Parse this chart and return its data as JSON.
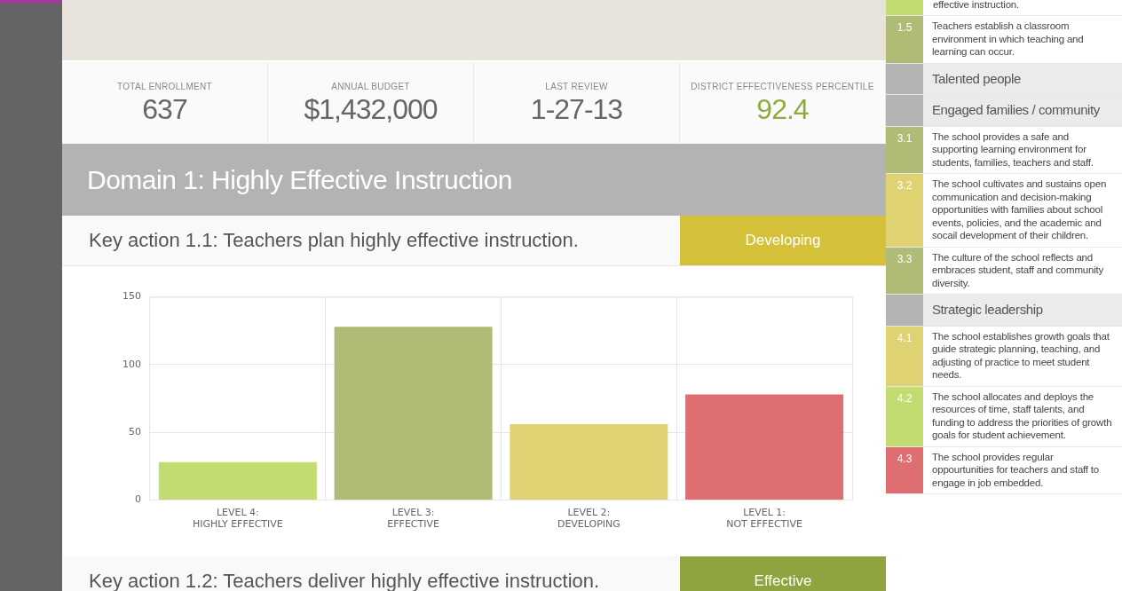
{
  "chart_data": [
    {
      "type": "other",
      "categories": [
        "TOTAL ENROLLMENT",
        "ANNUAL BUDGET",
        "LAST REVIEW",
        "DISTRICT EFFECTIVENESS PERCENTILE"
      ],
      "annotations": [
        "637",
        "$1,432,000",
        "1-27-13",
        "92.4"
      ]
    },
    {
      "type": "bar",
      "title": "Domain 1: Highly Effective Instruction",
      "subtitle": "Key action 1.1: Teachers plan highly effective instruction.",
      "annotations": [
        "Developing"
      ],
      "categories": [
        "LEVEL 4: HIGHLY EFFECTIVE",
        "LEVEL 3: EFFECTIVE",
        "LEVEL 2: DEVELOPING",
        "LEVEL 1: NOT EFFECTIVE"
      ],
      "values": [
        28,
        128,
        56,
        78
      ],
      "colors": [
        "#c2dc72",
        "#b0bc76",
        "#dfd272",
        "#de6e70"
      ],
      "ylim": [
        0,
        150
      ],
      "yticks": [
        0,
        50,
        100,
        150
      ],
      "grid": true
    },
    {
      "type": "other",
      "title": "Key action 1.2: Teachers deliver highly effective instruction.",
      "annotations": [
        "Effective"
      ]
    },
    {
      "type": "other",
      "categories": [
        null,
        "1.5",
        null,
        null,
        "3.1",
        "3.2",
        "3.3",
        null,
        "4.1",
        "4.2",
        "4.3"
      ],
      "annotations": [
        "effective instruction.",
        "Teachers establish a classroom environment in which teaching and learning can occur.",
        "Talented people",
        "Engaged families / community",
        "The school provides a safe and supporting learning environment for students, families, teachers and staff.",
        "The school cultivates and sustains open communication and decision-making opportunities with families about school events, policies, and the academic and socail development of their children.",
        "The culture of the school reflects and embraces student, staff and community diversity.",
        "Strategic leadership",
        "The school establishes growth goals that guide strategic planning, teaching, and adjusting of practice to meet student needs.",
        "The school allocates and deploys the resources of time, staff talents, and funding to address the priorities of growth goals for student achievement.",
        "The school provides regular oppourtunities for teachers and staff to engage in job embedded."
      ],
      "colors": [
        "#c2dc72",
        "#b0bc76",
        "#b3b3b3",
        "#b3b3b3",
        "#b0bc76",
        "#dfd272",
        "#b0bc76",
        "#b3b3b3",
        "#dfd272",
        "#c2dc72",
        "#de6e70"
      ]
    }
  ]
}
